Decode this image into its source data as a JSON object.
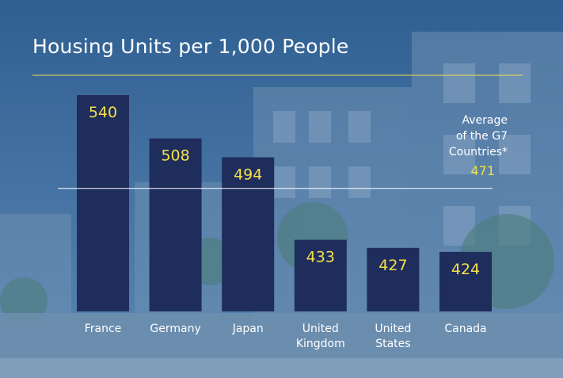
{
  "chart_data": {
    "type": "bar",
    "title": "Housing Units per 1,000 People",
    "categories": [
      "France",
      "Germany",
      "Japan",
      "United\nKingdom",
      "United\nStates",
      "Canada"
    ],
    "values": [
      540,
      508,
      494,
      433,
      427,
      424
    ],
    "value_labels": [
      "540",
      "508",
      "494",
      "433",
      "427",
      "424"
    ],
    "reference_line": {
      "label_lines": [
        "Average",
        "of the G7",
        "Countries*"
      ],
      "value": 471,
      "value_label": "471"
    },
    "xlabel": "",
    "ylabel": "",
    "ylim": [
      380,
      560
    ],
    "grid": false,
    "legend": "none"
  },
  "colors": {
    "bar": "#1f2d5c",
    "value_text": "#f3e04a",
    "title_text": "#ffffff",
    "axis_text": "#ffffff",
    "rule_line": "#f3e04a",
    "reference_line": "#ffffff",
    "background": "#3f6f9e"
  }
}
